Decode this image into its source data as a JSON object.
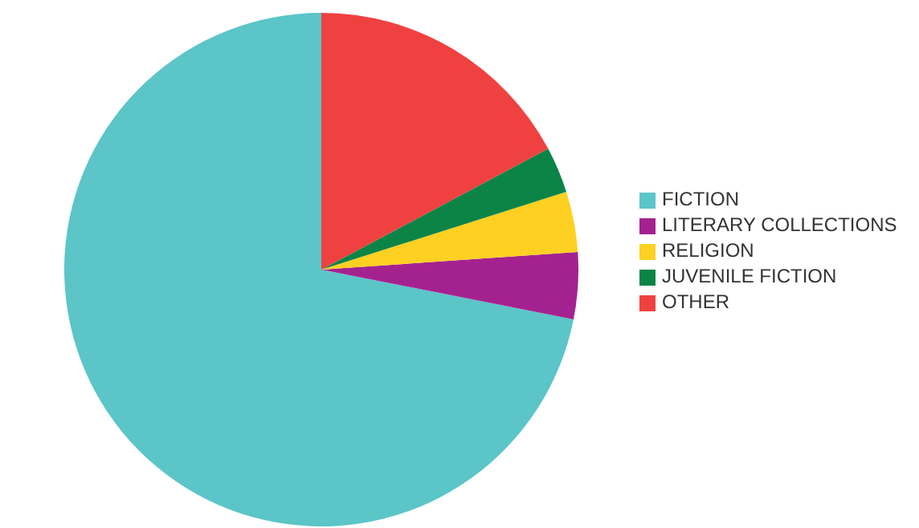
{
  "chart_data": {
    "type": "pie",
    "categories": [
      "FICTION",
      "LITERARY COLLECTIONS",
      "RELIGION",
      "JUVENILE FICTION",
      "OTHER"
    ],
    "values": [
      71.9,
      4.2,
      3.8,
      2.9,
      17.2
    ],
    "colors": [
      "#5bc5c8",
      "#a4228f",
      "#fdd022",
      "#0c8446",
      "#ef4140"
    ],
    "legend": "right"
  }
}
